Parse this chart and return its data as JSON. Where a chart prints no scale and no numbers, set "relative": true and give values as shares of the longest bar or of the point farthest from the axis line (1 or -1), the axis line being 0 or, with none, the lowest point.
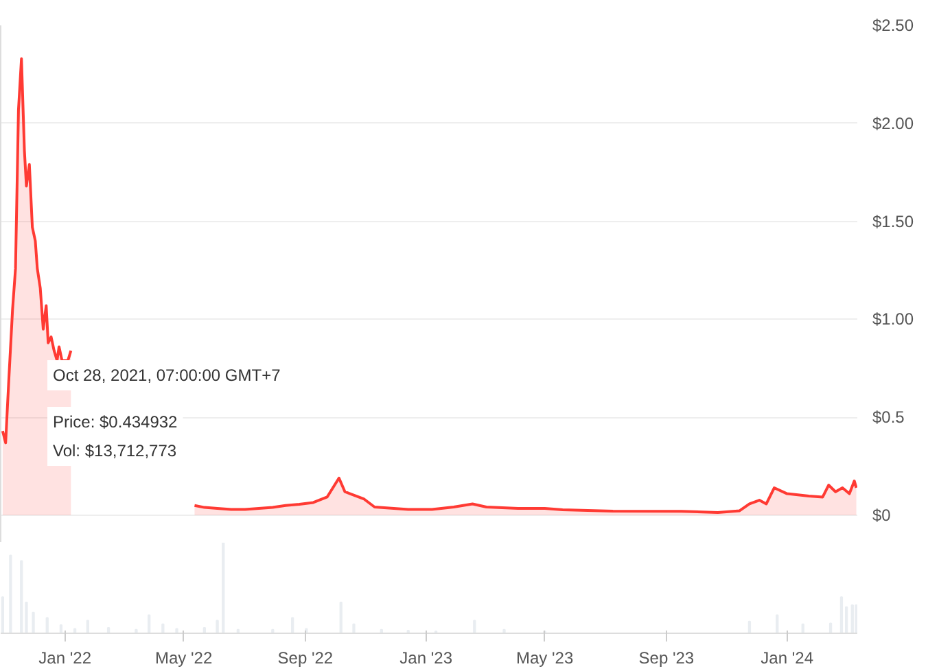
{
  "chart_data": [
    {
      "type": "area",
      "x": [
        "2021-10-30",
        "2021-11-02",
        "2021-11-05",
        "2021-11-09",
        "2021-11-12",
        "2021-11-15",
        "2021-11-18",
        "2021-11-21",
        "2021-11-23",
        "2021-11-26",
        "2021-11-29",
        "2021-12-02",
        "2021-12-04",
        "2021-12-07",
        "2021-12-10",
        "2021-12-13",
        "2021-12-15",
        "2021-12-18",
        "2021-12-21",
        "2021-12-24",
        "2021-12-26",
        "2021-12-29",
        "2022-01-04",
        "2022-01-07",
        "2022-02-15",
        "2022-05-12",
        "2022-05-22",
        "2022-06-04",
        "2022-06-18",
        "2022-07-02",
        "2022-07-16",
        "2022-07-30",
        "2022-08-12",
        "2022-08-26",
        "2022-09-09",
        "2022-09-23",
        "2022-10-05",
        "2022-10-11",
        "2022-10-30",
        "2022-11-10",
        "2022-12-14",
        "2023-01-07",
        "2023-01-29",
        "2023-02-17",
        "2023-03-03",
        "2023-04-04",
        "2023-05-01",
        "2023-05-19",
        "2023-07-09",
        "2023-09-16",
        "2023-10-23",
        "2023-11-14",
        "2023-11-24",
        "2023-12-04",
        "2023-12-11",
        "2023-12-19",
        "2024-01-01",
        "2024-01-23",
        "2024-02-06",
        "2024-02-12",
        "2024-02-19",
        "2024-02-26",
        "2024-03-04",
        "2024-03-09",
        "2024-03-11"
      ],
      "series": [
        {
          "color": "#ff3a33",
          "values": [
            0.43,
            0.37,
            0.67,
            1.05,
            1.26,
            2.07,
            2.33,
            1.86,
            1.68,
            1.79,
            1.47,
            1.4,
            1.26,
            1.16,
            0.95,
            1.07,
            0.88,
            0.91,
            0.84,
            0.79,
            0.86,
            0.79,
            0.79,
            0.84,
            null,
            0.05,
            0.04,
            0.035,
            0.03,
            0.03,
            0.035,
            0.04,
            0.05,
            0.056,
            0.065,
            0.093,
            0.19,
            0.12,
            0.084,
            0.042,
            0.03,
            0.03,
            0.042,
            0.058,
            0.042,
            0.035,
            0.035,
            0.028,
            0.021,
            0.02,
            0.014,
            0.023,
            0.058,
            0.077,
            0.058,
            0.14,
            0.11,
            0.098,
            0.093,
            0.154,
            0.12,
            0.14,
            0.11,
            0.175,
            0.14
          ]
        }
      ],
      "xlim": [
        "2021-10-28",
        "2024-03-12"
      ],
      "ylim": [
        -0.14,
        2.5
      ],
      "yticks": [
        {
          "value": 0,
          "label": "$0"
        },
        {
          "value": 0.5,
          "label": "$0.5"
        },
        {
          "value": 1,
          "label": "$1.00"
        },
        {
          "value": 1.5,
          "label": "$1.50"
        },
        {
          "value": 2,
          "label": "$2.00"
        },
        {
          "value": 2.5,
          "label": "$2.50"
        }
      ],
      "grid": "y",
      "tick_labels": "y",
      "annotations": [
        "Oct 28, 2021, 07:00:00 GMT+7",
        "Price: $0.434932",
        "Vol: $13,712,773"
      ]
    },
    {
      "type": "bar",
      "relative": true,
      "x": [
        "2021-10-30",
        "2021-11-07",
        "2021-11-18",
        "2021-11-23",
        "2021-11-30",
        "2021-12-14",
        "2021-12-28",
        "2022-01-11",
        "2022-01-24",
        "2022-02-14",
        "2022-03-14",
        "2022-03-27",
        "2022-04-10",
        "2022-04-24",
        "2022-05-22",
        "2022-06-04",
        "2022-06-10",
        "2022-06-25",
        "2022-07-30",
        "2022-08-19",
        "2022-09-02",
        "2022-10-07",
        "2022-10-20",
        "2022-11-17",
        "2022-12-14",
        "2023-01-11",
        "2023-02-19",
        "2023-03-21",
        "2023-05-01",
        "2023-07-09",
        "2023-09-16",
        "2023-11-24",
        "2023-12-22",
        "2024-01-17",
        "2024-02-14",
        "2024-02-25",
        "2024-03-01",
        "2024-03-07",
        "2024-03-11"
      ],
      "series": [
        {
          "color": "#e9edf1",
          "values": [
            0.4,
            0.86,
            0.8,
            0.34,
            0.23,
            0.17,
            0.09,
            0.05,
            0.14,
            0.06,
            0.04,
            0.2,
            0.1,
            0.05,
            0.06,
            0.14,
            1,
            0.04,
            0.04,
            0.17,
            0.05,
            0.34,
            0.1,
            0.04,
            0.03,
            0.02,
            0.14,
            0.04,
            0.02,
            null,
            null,
            0.13,
            0.2,
            0.1,
            0.11,
            0.4,
            0.29,
            0.31,
            0.31
          ]
        }
      ],
      "xlim": [
        "2021-10-28",
        "2024-03-12"
      ],
      "xticks": [
        {
          "value": "2022-01-01",
          "label": "Jan '22"
        },
        {
          "value": "2022-05-01",
          "label": "May '22"
        },
        {
          "value": "2022-09-01",
          "label": "Sep '22"
        },
        {
          "value": "2023-01-01",
          "label": "Jan '23"
        },
        {
          "value": "2023-05-01",
          "label": "May '23"
        },
        {
          "value": "2023-09-01",
          "label": "Sep '23"
        },
        {
          "value": "2024-01-01",
          "label": "Jan '24"
        }
      ],
      "grid": false,
      "tick_labels": "x"
    }
  ]
}
